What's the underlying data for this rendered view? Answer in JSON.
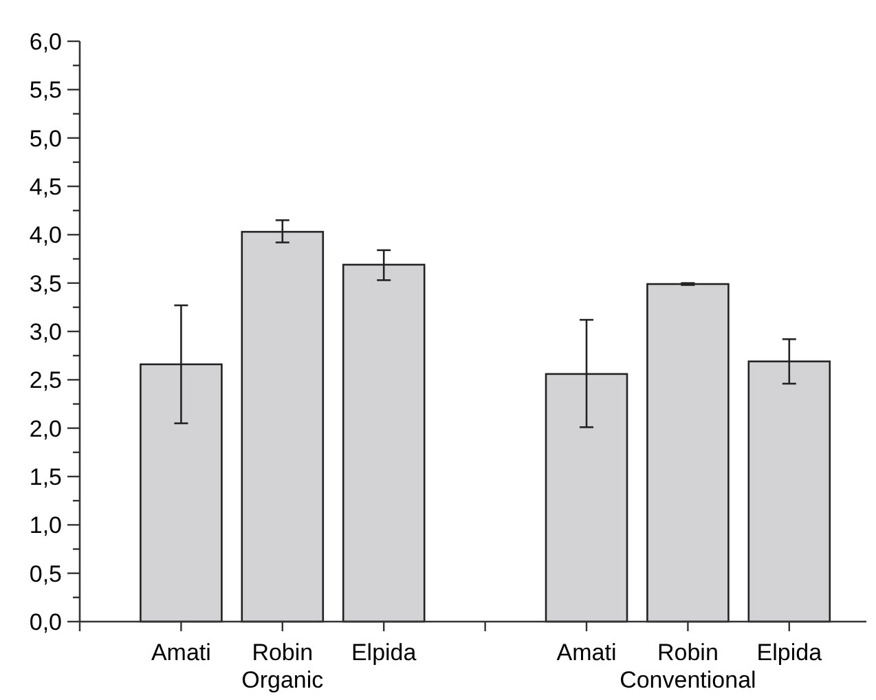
{
  "chart_data": {
    "type": "bar",
    "categories": [
      null,
      "Amati",
      "Robin",
      "Elpida",
      null,
      "Amati",
      "Robin",
      "Elpida"
    ],
    "values": [
      null,
      2.66,
      4.03,
      3.69,
      null,
      2.56,
      3.49,
      2.69
    ],
    "errors": [
      null,
      [
        2.05,
        3.27
      ],
      [
        3.92,
        4.15
      ],
      [
        3.53,
        3.84
      ],
      null,
      [
        2.01,
        3.12
      ],
      [
        3.48,
        3.5
      ],
      [
        2.46,
        2.92
      ]
    ],
    "color": "#d3d3d5",
    "ylim": [
      0,
      6
    ],
    "yticks": [
      {
        "value": 0,
        "label": "0,0"
      },
      {
        "value": 0.25,
        "label": null
      },
      {
        "value": 0.5,
        "label": "0,5"
      },
      {
        "value": 0.75,
        "label": null
      },
      {
        "value": 1,
        "label": "1,0"
      },
      {
        "value": 1.25,
        "label": null
      },
      {
        "value": 1.5,
        "label": "1,5"
      },
      {
        "value": 1.75,
        "label": null
      },
      {
        "value": 2,
        "label": "2,0"
      },
      {
        "value": 2.25,
        "label": null
      },
      {
        "value": 2.5,
        "label": "2,5"
      },
      {
        "value": 2.75,
        "label": null
      },
      {
        "value": 3,
        "label": "3,0"
      },
      {
        "value": 3.25,
        "label": null
      },
      {
        "value": 3.5,
        "label": "3,5"
      },
      {
        "value": 3.75,
        "label": null
      },
      {
        "value": 4,
        "label": "4,0"
      },
      {
        "value": 4.25,
        "label": null
      },
      {
        "value": 4.5,
        "label": "4,5"
      },
      {
        "value": 4.75,
        "label": null
      },
      {
        "value": 5,
        "label": "5,0"
      },
      {
        "value": 5.25,
        "label": null
      },
      {
        "value": 5.5,
        "label": "5,5"
      },
      {
        "value": 5.75,
        "label": null
      },
      {
        "value": 6,
        "label": "6,0"
      }
    ],
    "annotations": [
      "Organic",
      "Conventional"
    ],
    "grid": false
  }
}
